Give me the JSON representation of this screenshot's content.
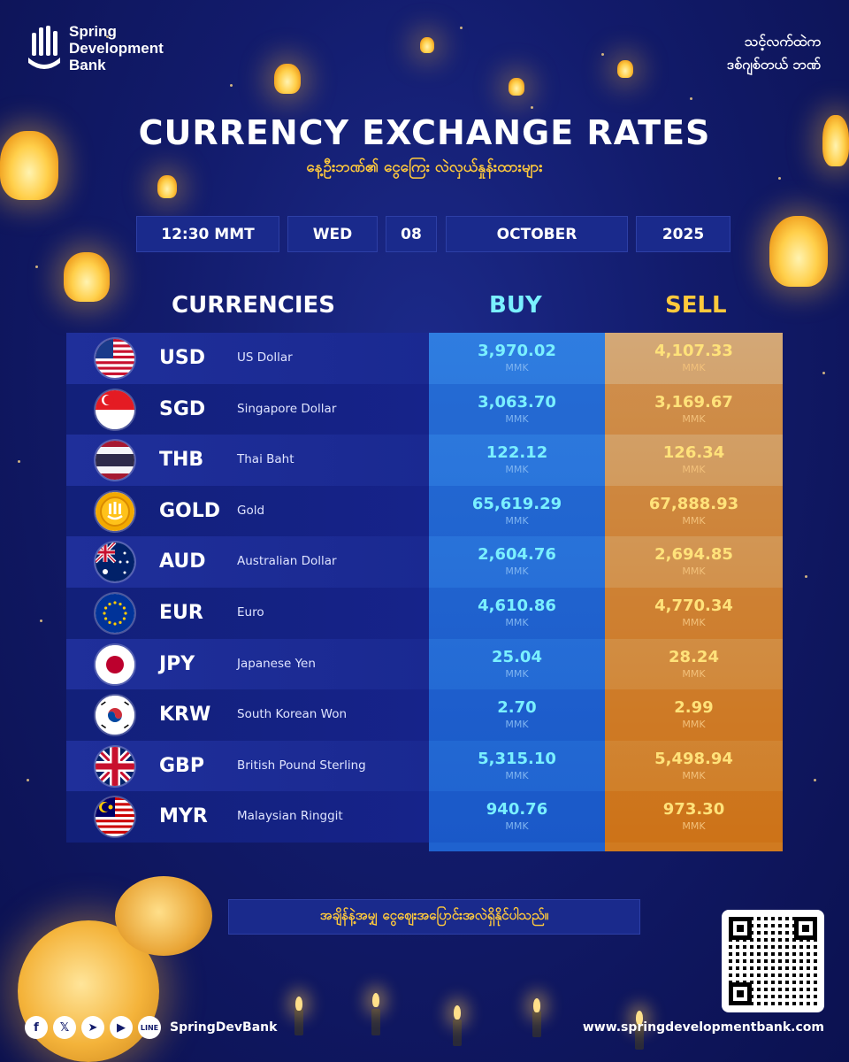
{
  "brand": {
    "line1": "Spring",
    "line2": "Development",
    "line3": "Bank"
  },
  "tagline": {
    "line1": "သင့်လက်ထဲက",
    "line2": "ဒစ်ဂျစ်တယ် ဘဏ်"
  },
  "title": "CURRENCY EXCHANGE RATES",
  "subtitle": "နေ့ဦးဘဏ်၏ ငွေကြေး လဲလှယ်နှုန်းထားများ",
  "date": {
    "time": "12:30 MMT",
    "weekday": "WED",
    "day": "08",
    "month": "OCTOBER",
    "year": "2025"
  },
  "headers": {
    "currencies": "CURRENCIES",
    "buy": "BUY",
    "sell": "SELL"
  },
  "colors": {
    "buy": "#2f7de0",
    "sell": "#d07a1f",
    "accent": "#ffc93c",
    "background": "#121b6b"
  },
  "unit": "MMK",
  "rates": [
    {
      "code": "USD",
      "name": "US Dollar",
      "buy": "3,970.02",
      "sell": "4,107.33",
      "flag": "us-flag-icon"
    },
    {
      "code": "SGD",
      "name": "Singapore Dollar",
      "buy": "3,063.70",
      "sell": "3,169.67",
      "flag": "singapore-flag-icon"
    },
    {
      "code": "THB",
      "name": "Thai Baht",
      "buy": "122.12",
      "sell": "126.34",
      "flag": "thailand-flag-icon"
    },
    {
      "code": "GOLD",
      "name": "Gold",
      "buy": "65,619.29",
      "sell": "67,888.93",
      "flag": "gold-coin-icon"
    },
    {
      "code": "AUD",
      "name": "Australian Dollar",
      "buy": "2,604.76",
      "sell": "2,694.85",
      "flag": "australia-flag-icon"
    },
    {
      "code": "EUR",
      "name": "Euro",
      "buy": "4,610.86",
      "sell": "4,770.34",
      "flag": "eu-flag-icon"
    },
    {
      "code": "JPY",
      "name": "Japanese Yen",
      "buy": "25.04",
      "sell": "28.24",
      "flag": "japan-flag-icon"
    },
    {
      "code": "KRW",
      "name": "South Korean Won",
      "buy": "2.70",
      "sell": "2.99",
      "flag": "korea-flag-icon"
    },
    {
      "code": "GBP",
      "name": "British Pound Sterling",
      "buy": "5,315.10",
      "sell": "5,498.94",
      "flag": "uk-flag-icon"
    },
    {
      "code": "MYR",
      "name": "Malaysian Ringgit",
      "buy": "940.76",
      "sell": "973.30",
      "flag": "malaysia-flag-icon"
    }
  ],
  "note": "အချိန်နဲ့အမျှ ငွေဈေးအပြောင်းအလဲရှိနိုင်ပါသည်။",
  "social": {
    "icons": [
      "facebook-icon",
      "x-icon",
      "telegram-icon",
      "youtube-icon",
      "line-icon"
    ],
    "handle": "SpringDevBank"
  },
  "website": "www.springdevelopmentbank.com"
}
